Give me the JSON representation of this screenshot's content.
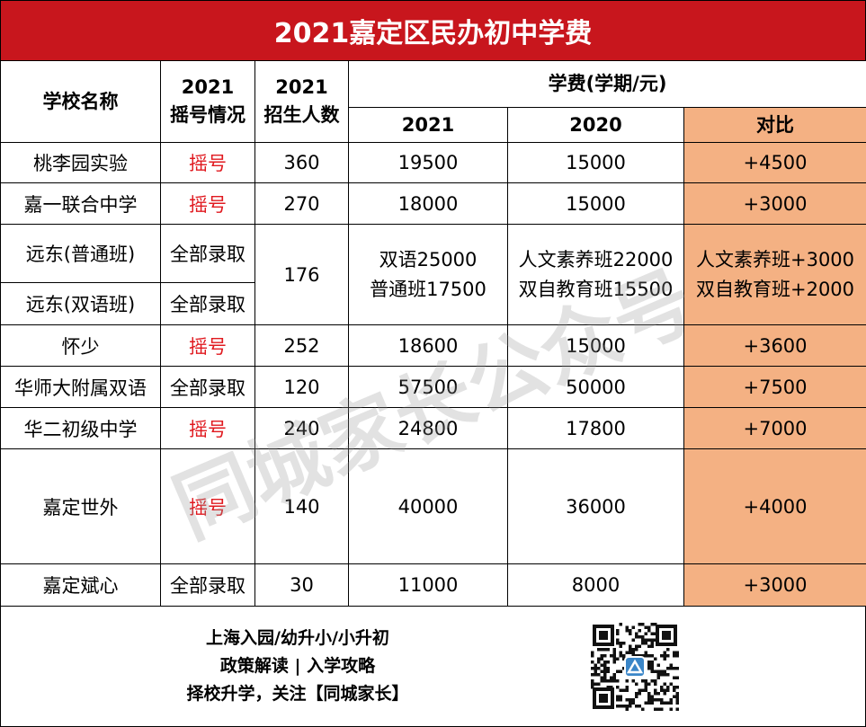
{
  "title": "2021嘉定区民办初中学费",
  "headers": {
    "school_name": "学校名称",
    "lottery_year": "2021",
    "lottery_label": "摇号情况",
    "enroll_year": "2021",
    "enroll_label": "招生人数",
    "fee_group": "学费(学期/元)",
    "fee_2021": "2021",
    "fee_2020": "2020",
    "compare": "对比"
  },
  "rows": [
    {
      "school": "桃李园实验",
      "status": "摇号",
      "enroll": "360",
      "fee2021": "19500",
      "fee2020": "15000",
      "compare": "+4500"
    },
    {
      "school": "嘉一联合中学",
      "status": "摇号",
      "enroll": "270",
      "fee2021": "18000",
      "fee2020": "15000",
      "compare": "+3000"
    }
  ],
  "yuandong": {
    "school_a": "远东(普通班)",
    "status_a": "全部录取",
    "school_b": "远东(双语班)",
    "status_b": "全部录取",
    "enroll": "176",
    "fee2021_line1": "双语25000",
    "fee2021_line2": "普通班17500",
    "fee2020_line1": "人文素养班22000",
    "fee2020_line2": "双自教育班15500",
    "compare_line1": "人文素养班+3000",
    "compare_line2": "双自教育班+2000"
  },
  "rows2": [
    {
      "school": "怀少",
      "status": "摇号",
      "enroll": "252",
      "fee2021": "18600",
      "fee2020": "15000",
      "compare": "+3600"
    },
    {
      "school": "华师大附属双语",
      "status": "全部录取",
      "enroll": "120",
      "fee2021": "57500",
      "fee2020": "50000",
      "compare": "+7500"
    },
    {
      "school": "华二初级中学",
      "status": "摇号",
      "enroll": "240",
      "fee2021": "24800",
      "fee2020": "17800",
      "compare": "+7000"
    },
    {
      "school": "嘉定世外",
      "status": "摇号",
      "enroll": "140",
      "fee2021": "40000",
      "fee2020": "36000",
      "compare": "+4000"
    },
    {
      "school": "嘉定斌心",
      "status": "全部录取",
      "enroll": "30",
      "fee2021": "11000",
      "fee2020": "8000",
      "compare": "+3000"
    }
  ],
  "footer": {
    "line1": "上海入园/幼升小/小升初",
    "line2": "政策解读 | 入学攻略",
    "line3": "择校升学，关注【同城家长】"
  },
  "watermark": "同城家长公众号",
  "colors": {
    "title_bg": "#c8161d",
    "lottery_text": "#e0191f",
    "compare_bg": "#f4b183",
    "qr_badge": "#3a86c8"
  },
  "icons": {
    "qr": "qr-code-icon",
    "badge": "triangle-logo-icon"
  }
}
